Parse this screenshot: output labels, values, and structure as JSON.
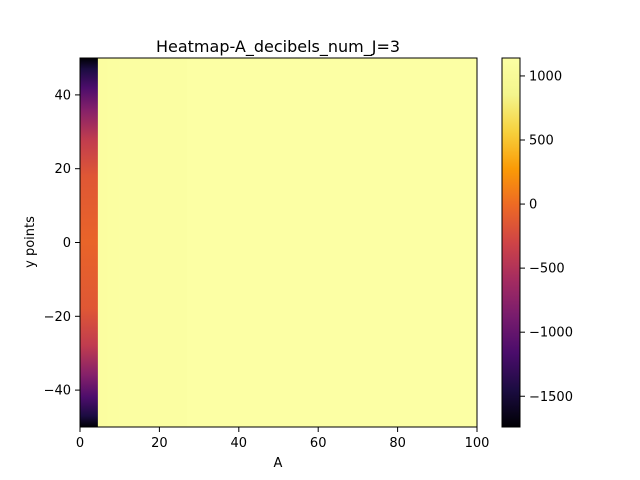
{
  "chart_data": {
    "type": "heatmap",
    "title": "Heatmap-A_decibels_num_J=3",
    "xlabel": "A",
    "ylabel": "y points",
    "xlim": [
      0,
      100
    ],
    "ylim": [
      -50,
      50
    ],
    "x_ticks": [
      0,
      20,
      40,
      60,
      80,
      100
    ],
    "y_ticks": [
      -40,
      -20,
      0,
      20,
      40
    ],
    "grid": false,
    "colormap": "inferno",
    "colorbar": {
      "range": [
        -1740,
        1140
      ],
      "ticks": [
        1000,
        500,
        0,
        -500,
        -1000,
        -1500
      ],
      "tick_labels": [
        "1000",
        "500",
        "0",
        "−500",
        "−1000",
        "−1500"
      ]
    },
    "columns": [
      {
        "x_range": [
          0,
          4.5
        ],
        "profile": [
          {
            "y": 50,
            "value": -1740
          },
          {
            "y": 47,
            "value": -1450
          },
          {
            "y": 42,
            "value": -1150
          },
          {
            "y": 36,
            "value": -800
          },
          {
            "y": 28,
            "value": -400
          },
          {
            "y": 18,
            "value": -150
          },
          {
            "y": 0,
            "value": -50
          },
          {
            "y": -18,
            "value": -150
          },
          {
            "y": -28,
            "value": -400
          },
          {
            "y": -36,
            "value": -800
          },
          {
            "y": -42,
            "value": -1150
          },
          {
            "y": -47,
            "value": -1450
          },
          {
            "y": -50,
            "value": -1740
          }
        ]
      },
      {
        "x_range": [
          4.5,
          7
        ],
        "value": 1095
      },
      {
        "x_range": [
          7,
          10
        ],
        "value": 1105
      },
      {
        "x_range": [
          10,
          27
        ],
        "value": 1118
      },
      {
        "x_range": [
          27,
          100
        ],
        "value": 1140
      }
    ]
  },
  "colors": {
    "axes": "#000000",
    "background": "#ffffff"
  }
}
